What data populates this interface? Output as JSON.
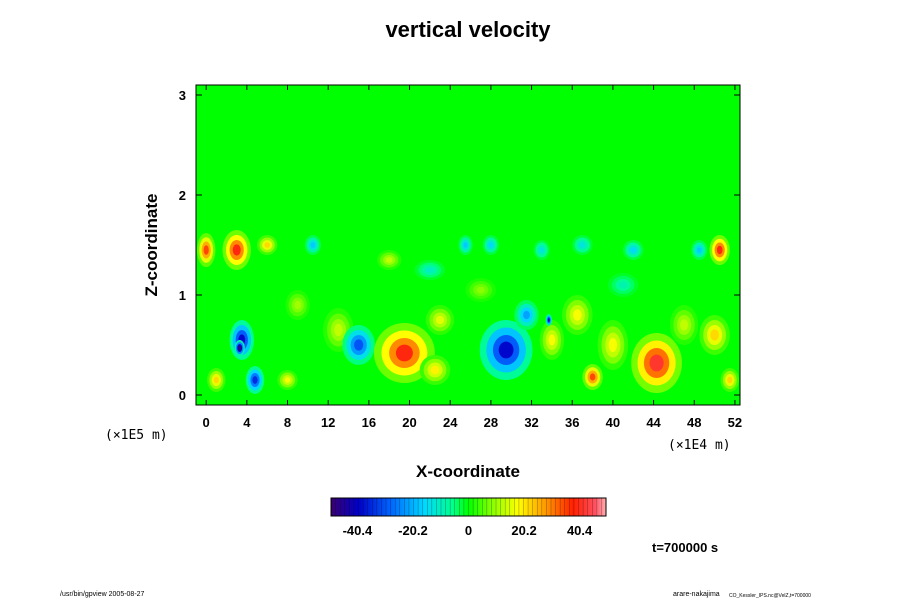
{
  "chart_data": {
    "type": "heatmap",
    "title": "vertical velocity",
    "xlabel": "X-coordinate",
    "ylabel": "Z-coordinate",
    "xlim": [
      -1,
      52.5
    ],
    "ylim": [
      -0.1,
      3.1
    ],
    "x_ticks": [
      "0",
      "4",
      "8",
      "12",
      "16",
      "20",
      "24",
      "28",
      "32",
      "36",
      "40",
      "44",
      "48",
      "52"
    ],
    "y_ticks": [
      "0",
      "1",
      "2",
      "3"
    ],
    "x_unit": "(×1E4 m)",
    "y_unit": "(×1E5 m)",
    "colorbar": {
      "range": [
        -50,
        50
      ],
      "ticks": [
        "-40.4",
        "-20.2",
        "0",
        "20.2",
        "40.4"
      ],
      "tick_values": [
        -40.4,
        -20.2,
        0,
        20.2,
        40.4
      ]
    },
    "features": [
      {
        "x": 3.5,
        "z": 0.55,
        "value": -45,
        "rx": 1.2,
        "rz": 0.2
      },
      {
        "x": 3.3,
        "z": 0.47,
        "value": -60,
        "rx": 0.5,
        "rz": 0.08
      },
      {
        "x": 4.8,
        "z": 0.15,
        "value": -40,
        "rx": 0.9,
        "rz": 0.14
      },
      {
        "x": 1.0,
        "z": 0.15,
        "value": 25,
        "rx": 0.9,
        "rz": 0.12
      },
      {
        "x": 8.0,
        "z": 0.15,
        "value": 20,
        "rx": 1.0,
        "rz": 0.1
      },
      {
        "x": 3.0,
        "z": 1.45,
        "value": 45,
        "rx": 1.4,
        "rz": 0.2
      },
      {
        "x": 0.0,
        "z": 1.45,
        "value": 40,
        "rx": 0.9,
        "rz": 0.17
      },
      {
        "x": 6.0,
        "z": 1.5,
        "value": 25,
        "rx": 1.0,
        "rz": 0.1
      },
      {
        "x": 13.0,
        "z": 0.65,
        "value": 15,
        "rx": 1.5,
        "rz": 0.22
      },
      {
        "x": 15.0,
        "z": 0.5,
        "value": -35,
        "rx": 1.6,
        "rz": 0.2
      },
      {
        "x": 19.5,
        "z": 0.42,
        "value": 45,
        "rx": 3.0,
        "rz": 0.3
      },
      {
        "x": 22.5,
        "z": 0.25,
        "value": 22,
        "rx": 1.5,
        "rz": 0.15
      },
      {
        "x": 23.0,
        "z": 0.75,
        "value": 18,
        "rx": 1.4,
        "rz": 0.15
      },
      {
        "x": 29.5,
        "z": 0.45,
        "value": -45,
        "rx": 2.6,
        "rz": 0.3
      },
      {
        "x": 31.5,
        "z": 0.8,
        "value": -25,
        "rx": 1.2,
        "rz": 0.15
      },
      {
        "x": 34.0,
        "z": 0.55,
        "value": 20,
        "rx": 1.2,
        "rz": 0.2
      },
      {
        "x": 36.5,
        "z": 0.8,
        "value": 20,
        "rx": 1.5,
        "rz": 0.2
      },
      {
        "x": 38.0,
        "z": 0.18,
        "value": 40,
        "rx": 1.0,
        "rz": 0.13
      },
      {
        "x": 40.0,
        "z": 0.5,
        "value": 20,
        "rx": 1.5,
        "rz": 0.25
      },
      {
        "x": 44.3,
        "z": 0.32,
        "value": 48,
        "rx": 2.5,
        "rz": 0.3
      },
      {
        "x": 47.0,
        "z": 0.7,
        "value": 15,
        "rx": 1.4,
        "rz": 0.2
      },
      {
        "x": 50.0,
        "z": 0.6,
        "value": 25,
        "rx": 1.5,
        "rz": 0.2
      },
      {
        "x": 51.5,
        "z": 0.15,
        "value": 25,
        "rx": 0.9,
        "rz": 0.12
      },
      {
        "x": 50.5,
        "z": 1.45,
        "value": 45,
        "rx": 1.0,
        "rz": 0.15
      },
      {
        "x": 48.5,
        "z": 1.45,
        "value": -20,
        "rx": 0.8,
        "rz": 0.1
      },
      {
        "x": 10.5,
        "z": 1.5,
        "value": -20,
        "rx": 0.8,
        "rz": 0.1
      },
      {
        "x": 25.5,
        "z": 1.5,
        "value": -20,
        "rx": 0.7,
        "rz": 0.1
      },
      {
        "x": 28.0,
        "z": 1.5,
        "value": -18,
        "rx": 0.8,
        "rz": 0.1
      },
      {
        "x": 33.0,
        "z": 1.45,
        "value": -15,
        "rx": 0.8,
        "rz": 0.1
      },
      {
        "x": 42.0,
        "z": 1.45,
        "value": -18,
        "rx": 1.0,
        "rz": 0.1
      },
      {
        "x": 37.0,
        "z": 1.5,
        "value": -15,
        "rx": 1.0,
        "rz": 0.1
      },
      {
        "x": 18.0,
        "z": 1.35,
        "value": 15,
        "rx": 1.2,
        "rz": 0.1
      },
      {
        "x": 22.0,
        "z": 1.25,
        "value": -12,
        "rx": 1.5,
        "rz": 0.1
      },
      {
        "x": 33.7,
        "z": 0.75,
        "value": -48,
        "rx": 0.3,
        "rz": 0.06
      },
      {
        "x": 9.0,
        "z": 0.9,
        "value": 12,
        "rx": 1.2,
        "rz": 0.15
      },
      {
        "x": 27.0,
        "z": 1.05,
        "value": 10,
        "rx": 1.5,
        "rz": 0.12
      },
      {
        "x": 41.0,
        "z": 1.1,
        "value": -10,
        "rx": 1.5,
        "rz": 0.12
      }
    ]
  },
  "annotation_time": "t=700000 s",
  "footer": {
    "left": "/usr/bin/gpview 2005-08-27",
    "right_main": "arare-nakajima",
    "right_small": "CO_Kessler_IPS.nc@VelZ,t=700000"
  }
}
